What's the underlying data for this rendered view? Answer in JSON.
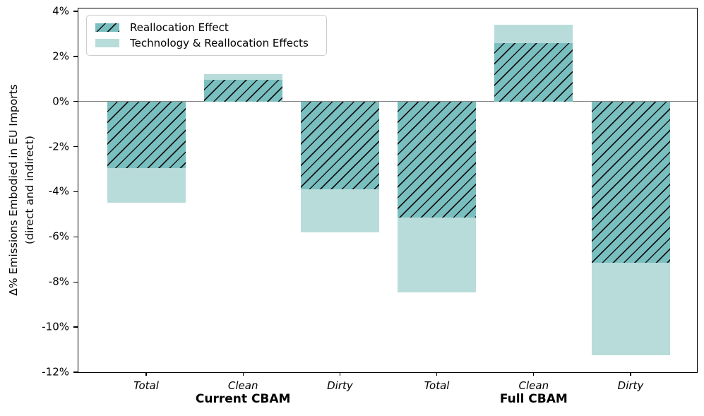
{
  "page": {
    "background": "#ffffff"
  },
  "legend": {
    "position": "upper left",
    "items": [
      {
        "label": "Reallocation Effect",
        "swatch": "hatched"
      },
      {
        "label": "Technology & Reallocation Effects",
        "swatch": "solid"
      }
    ]
  },
  "colors": {
    "bar_teal": "#7abfc0",
    "bar_light_teal": "#b8dcda",
    "hatch_line": "#141414",
    "zero_line": "#808080",
    "axis": "#000000",
    "legend_border": "#cccccc",
    "text": "#000000"
  },
  "chart_data": {
    "type": "bar",
    "stacked": true,
    "stacking": "second series values are cumulative totals; solid segment drawn from hatched value to total",
    "categories": [
      "Total",
      "Clean",
      "Dirty",
      "Total",
      "Clean",
      "Dirty"
    ],
    "group_labels": [
      {
        "label": "Current CBAM",
        "from": 0,
        "to": 2
      },
      {
        "label": "Full CBAM",
        "from": 3,
        "to": 5
      }
    ],
    "series": [
      {
        "name": "Reallocation Effect",
        "style": "hatched",
        "values": [
          -2.95,
          0.95,
          -3.9,
          -5.15,
          2.6,
          -7.15
        ]
      },
      {
        "name": "Technology & Reallocation Effects",
        "style": "solid",
        "values": [
          -4.5,
          1.2,
          -5.8,
          -8.45,
          3.4,
          -11.25
        ]
      }
    ],
    "ylabel_line1": "Δ% Emissions Embodied in EU Imports",
    "ylabel_line2": "(direct and indirect)",
    "yticks": [
      4,
      2,
      0,
      -2,
      -4,
      -6,
      -8,
      -10,
      -12
    ],
    "ytick_labels": [
      "4%",
      "2%",
      "0%",
      "-2%",
      "-4%",
      "-6%",
      "-8%",
      "-10%",
      "-12%"
    ],
    "ylim": [
      -12,
      4.125
    ],
    "grid": false,
    "zero_line": true,
    "legend_position": "upper left"
  }
}
